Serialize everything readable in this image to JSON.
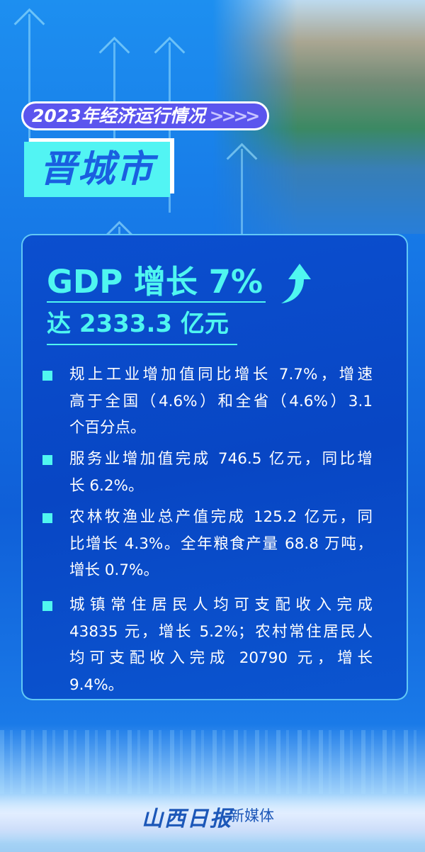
{
  "header": {
    "pill_title": "2023年经济运行情况",
    "pill_chevrons": ">>>>",
    "city": "晋城市"
  },
  "headline": {
    "gdp": "GDP 增长 7%",
    "amount": "达 2333.3 亿元",
    "arrow_icon": "up-arrow-icon"
  },
  "items": [
    {
      "lines": [
        "规上工业增加值同比增长 7.7%，增速",
        "高于全国（4.6%）和全省（4.6%）3.1",
        "个百分点。"
      ]
    },
    {
      "lines": [
        "服务业增加值完成 746.5 亿元，同比增",
        "长 6.2%。"
      ]
    },
    {
      "lines": [
        "农林牧渔业总产值完成 125.2 亿元，同",
        "比增长 4.3%。全年粮食产量 68.8 万吨，",
        "增长 0.7%。"
      ]
    },
    {
      "lines": [
        "城镇常住居民人均可支配收入完成",
        "43835 元，增长 5.2%；农村常住居民人",
        "均可支配收入完成 20790 元，增长",
        "9.4%。"
      ]
    }
  ],
  "footer": {
    "logo": "山西日报",
    "subtitle": "新媒体"
  },
  "colors": {
    "accent": "#4ff6f0",
    "pill": "#5b55ee",
    "card": "#0846c4",
    "city_text": "#1a5fe0"
  }
}
